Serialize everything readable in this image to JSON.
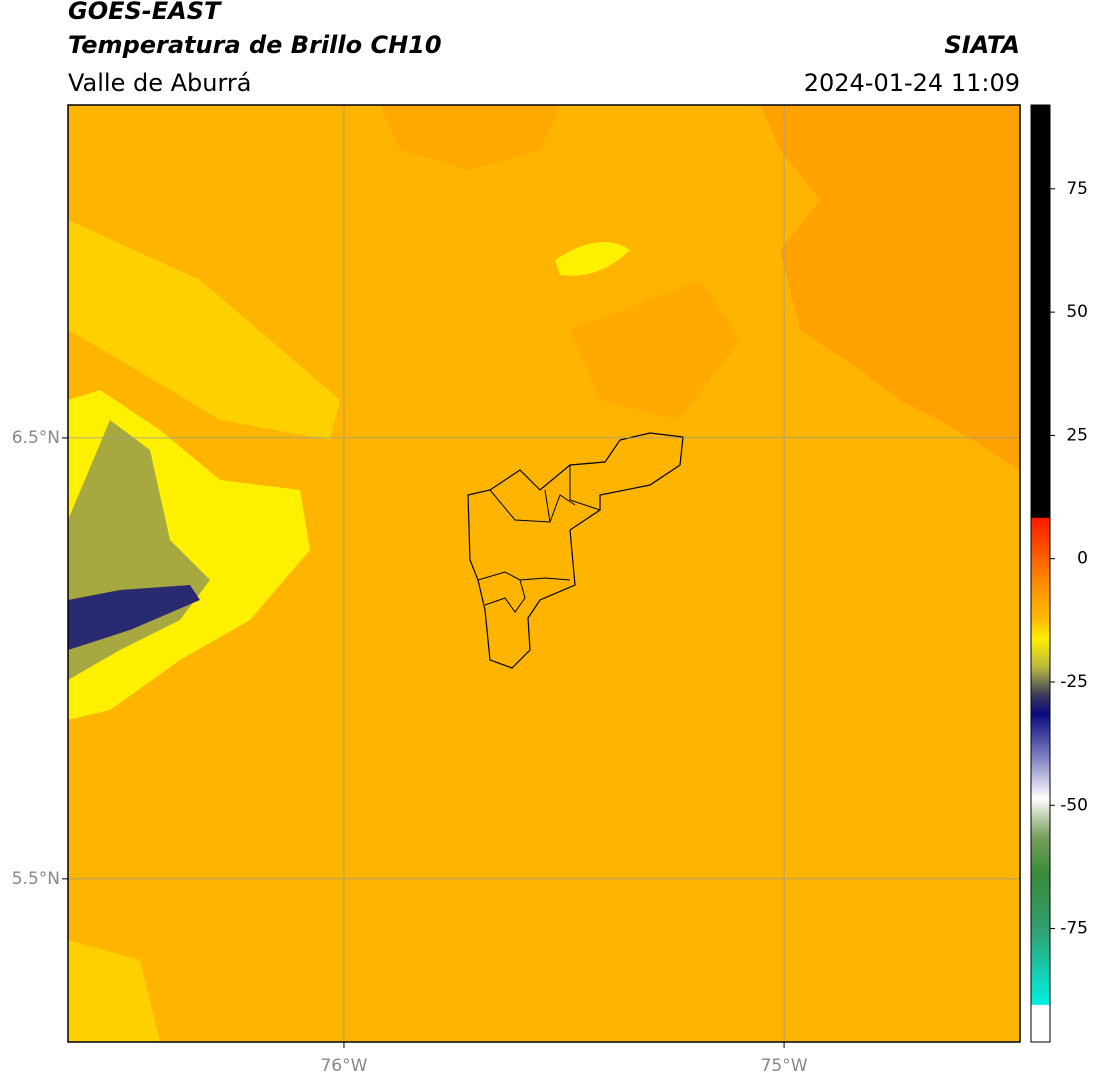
{
  "header": {
    "title": "GOES-EAST",
    "subtitle": "Temperatura de Brillo CH10",
    "source": "SIATA",
    "region": "Valle de Aburrá",
    "datetime": "2024-01-24 11:09"
  },
  "map": {
    "xlim": [
      -76.627,
      -74.464
    ],
    "ylim": [
      5.13,
      7.255
    ],
    "xticks": [
      {
        "value": -76,
        "label": "76°W"
      },
      {
        "value": -75,
        "label": "75°W"
      }
    ],
    "yticks": [
      {
        "value": 6.5,
        "label": "6.5°N"
      },
      {
        "value": 5.5,
        "label": "5.5°N"
      }
    ],
    "grid": true
  },
  "colorbar": {
    "lim": [
      -98,
      92
    ],
    "ticks": [
      75,
      50,
      25,
      0,
      -25,
      -50,
      -75
    ]
  }
}
